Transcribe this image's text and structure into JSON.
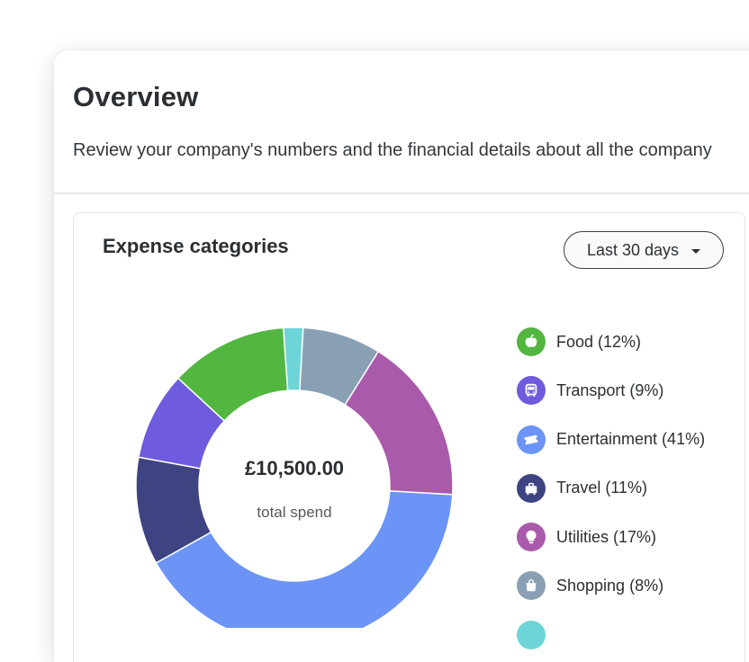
{
  "header": {
    "title": "Overview",
    "subtitle": "Review your company's numbers and the financial details about all the company"
  },
  "card": {
    "title": "Expense categories",
    "range_select": {
      "value": "Last 30 days"
    }
  },
  "chart_data": {
    "type": "pie",
    "variant": "donut",
    "title": "Expense categories",
    "center_value": "£10,500.00",
    "center_label": "total spend",
    "legend_position": "right",
    "slices": [
      {
        "label": "Food (12%)",
        "value": 12,
        "color": "#52b640",
        "icon": "apple-icon"
      },
      {
        "label": "Transport (9%)",
        "value": 9,
        "color": "#6f5bde",
        "icon": "bus-icon"
      },
      {
        "label": "Entertainment (41%)",
        "value": 41,
        "color": "#6b94f6",
        "icon": "ticket-icon"
      },
      {
        "label": "Travel (11%)",
        "value": 11,
        "color": "#3e4381",
        "icon": "suitcase-icon"
      },
      {
        "label": "Utilities (17%)",
        "value": 17,
        "color": "#a95aaa",
        "icon": "lightbulb-icon"
      },
      {
        "label": "Shopping (8%)",
        "value": 8,
        "color": "#89a0b4",
        "icon": "shopping-bag-icon"
      },
      {
        "label": "",
        "value": 2,
        "color": "#6dd4d8",
        "icon": "other-icon"
      }
    ]
  }
}
